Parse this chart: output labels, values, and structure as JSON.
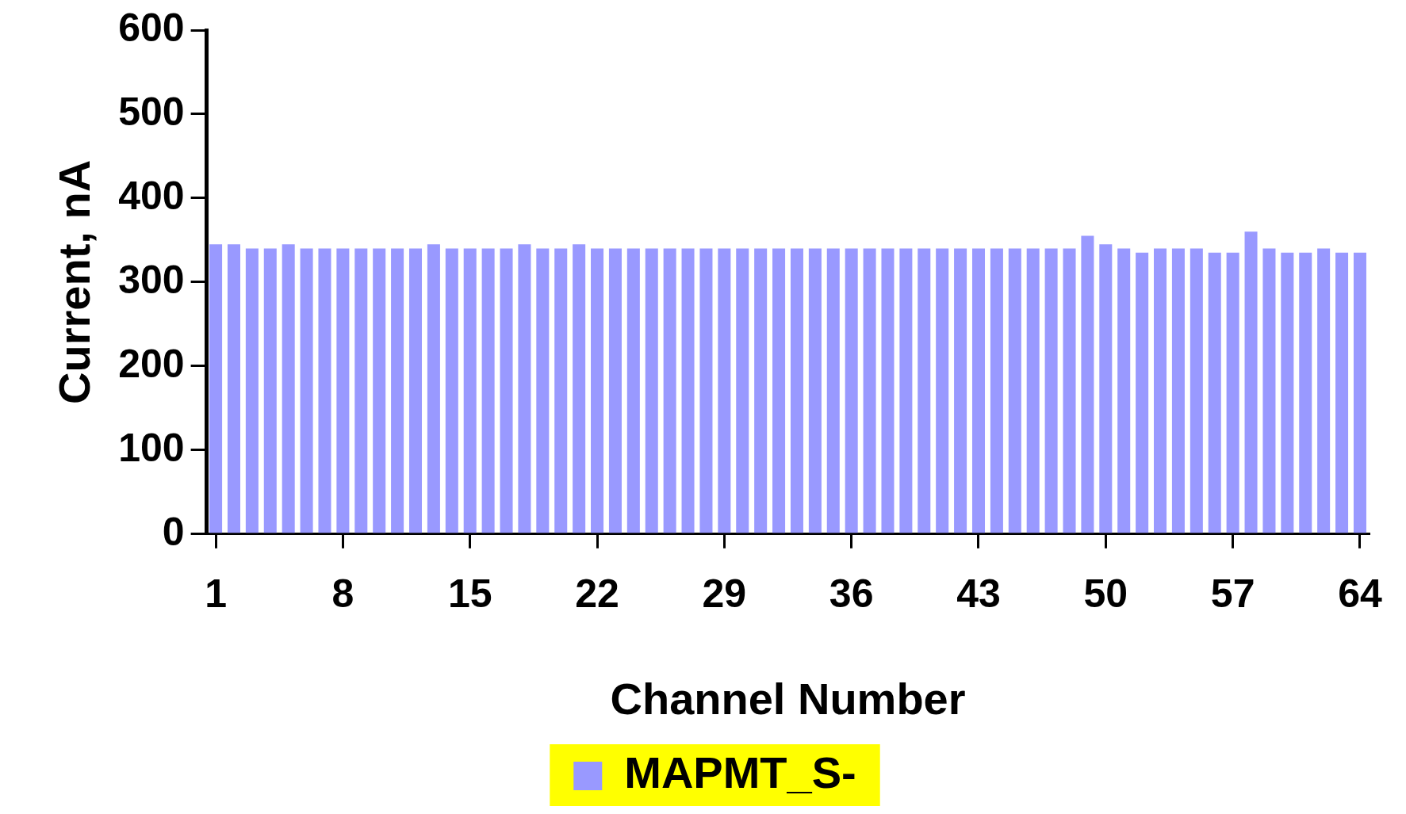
{
  "chart_data": {
    "type": "bar",
    "categories": [
      "1",
      null,
      null,
      null,
      null,
      null,
      null,
      "8",
      null,
      null,
      null,
      null,
      null,
      null,
      "15",
      null,
      null,
      null,
      null,
      null,
      null,
      "22",
      null,
      null,
      null,
      null,
      null,
      null,
      "29",
      null,
      null,
      null,
      null,
      null,
      null,
      "36",
      null,
      null,
      null,
      null,
      null,
      null,
      "43",
      null,
      null,
      null,
      null,
      null,
      null,
      "50",
      null,
      null,
      null,
      null,
      null,
      null,
      "57",
      null,
      null,
      null,
      null,
      null,
      null,
      "64"
    ],
    "series": [
      {
        "name": "MAPMT_S-",
        "color": "#9999ff",
        "values": [
          345,
          345,
          340,
          340,
          345,
          340,
          340,
          340,
          340,
          340,
          340,
          340,
          345,
          340,
          340,
          340,
          340,
          345,
          340,
          340,
          345,
          340,
          340,
          340,
          340,
          340,
          340,
          340,
          340,
          340,
          340,
          340,
          340,
          340,
          340,
          340,
          340,
          340,
          340,
          340,
          340,
          340,
          340,
          340,
          340,
          340,
          340,
          340,
          355,
          345,
          340,
          335,
          340,
          340,
          340,
          335,
          335,
          360,
          340,
          335,
          335,
          340,
          335,
          335
        ]
      }
    ],
    "xlabel": "Channel Number",
    "ylabel": "Current, nA",
    "ylim": [
      0,
      600
    ],
    "yticks": [
      0,
      100,
      200,
      300,
      400,
      500,
      600
    ],
    "grid": false,
    "legend": "bottom"
  }
}
